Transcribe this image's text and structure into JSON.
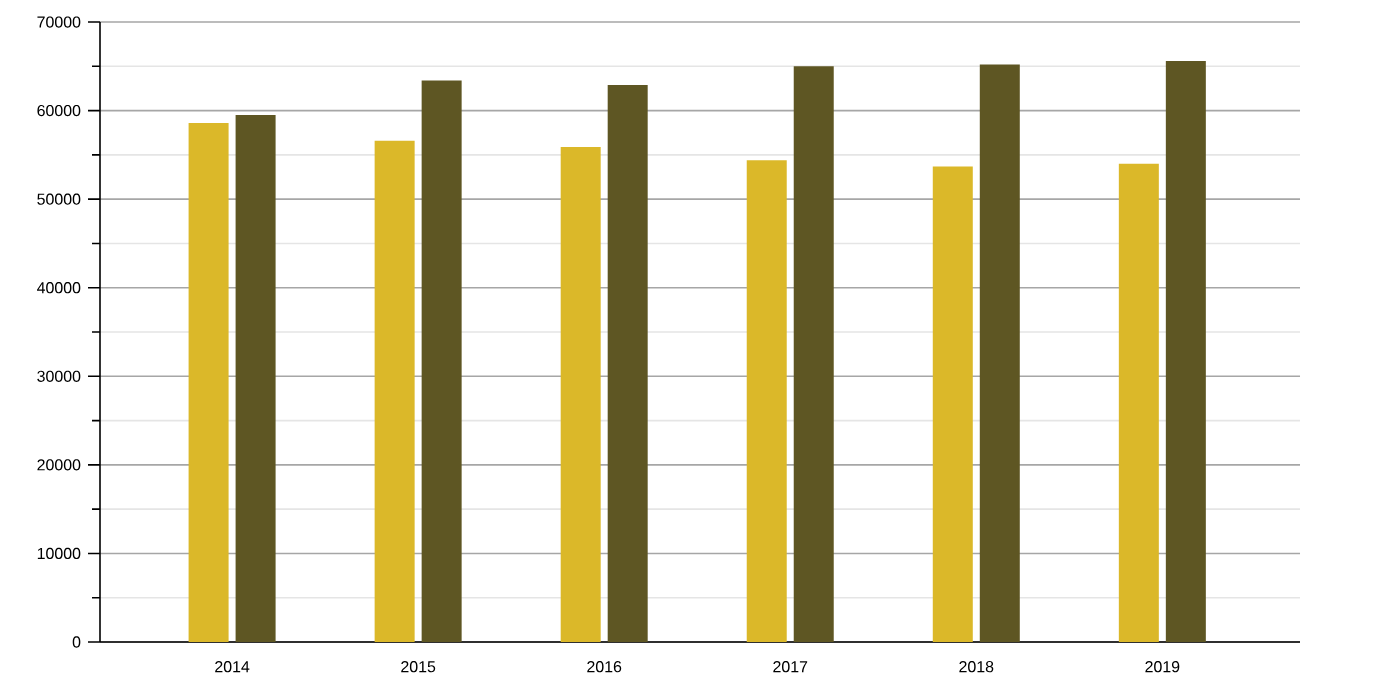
{
  "chart_data": {
    "type": "bar",
    "categories": [
      "2014",
      "2015",
      "2016",
      "2017",
      "2018",
      "2019"
    ],
    "series": [
      {
        "color": "#dbb829",
        "values": [
          58600,
          56600,
          55900,
          54400,
          53700,
          54000
        ]
      },
      {
        "color": "#5e5623",
        "values": [
          59500,
          63400,
          62900,
          65000,
          65200,
          65600
        ]
      }
    ],
    "ylim": [
      0,
      70000
    ],
    "yticks": [
      0,
      {
        "value": 5000,
        "label": null
      },
      10000,
      {
        "value": 15000,
        "label": null
      },
      20000,
      {
        "value": 25000,
        "label": null
      },
      30000,
      {
        "value": 35000,
        "label": null
      },
      40000,
      {
        "value": 45000,
        "label": null
      },
      50000,
      {
        "value": 55000,
        "label": null
      },
      60000,
      {
        "value": 65000,
        "label": null
      },
      70000
    ],
    "grid": "y"
  }
}
